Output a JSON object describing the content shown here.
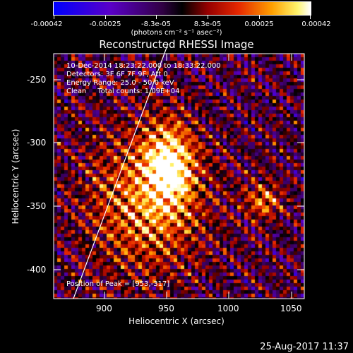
{
  "colorbar": {
    "tick_labels": [
      "-0.00042",
      "-0.00025",
      "-8.3e-05",
      "8.3e-05",
      "0.00025",
      "0.00042"
    ],
    "units_label": "(photons cm⁻² s⁻¹ asec⁻²)"
  },
  "plot": {
    "title": "Reconstructed RHESSI Image",
    "info_lines": [
      "10-Dec-2014 18:23:22.000 to 18:33:22.000",
      "Detectors: 3F 6F 7F 9F, Att 0",
      "Energy Range: 25.0 - 50.0 keV",
      "Clean     Total counts: 1.09E+04"
    ],
    "peak_label": "Position of Peak = [953,-317]",
    "xlabel": "Heliocentric X (arcsec)",
    "ylabel": "Heliocentric Y (arcsec)",
    "x_ticks": [
      "900",
      "950",
      "1000",
      "1050"
    ],
    "y_ticks": [
      "-250",
      "-300",
      "-350",
      "-400"
    ],
    "x_range": [
      862,
      1062
    ],
    "y_range": [
      -424,
      -230
    ],
    "peak": [
      953,
      -317
    ],
    "colormap": "red-temperature / rainbow",
    "limb_line_color": "#ffffff"
  },
  "timestamp": "25-Aug-2017 11:37"
}
